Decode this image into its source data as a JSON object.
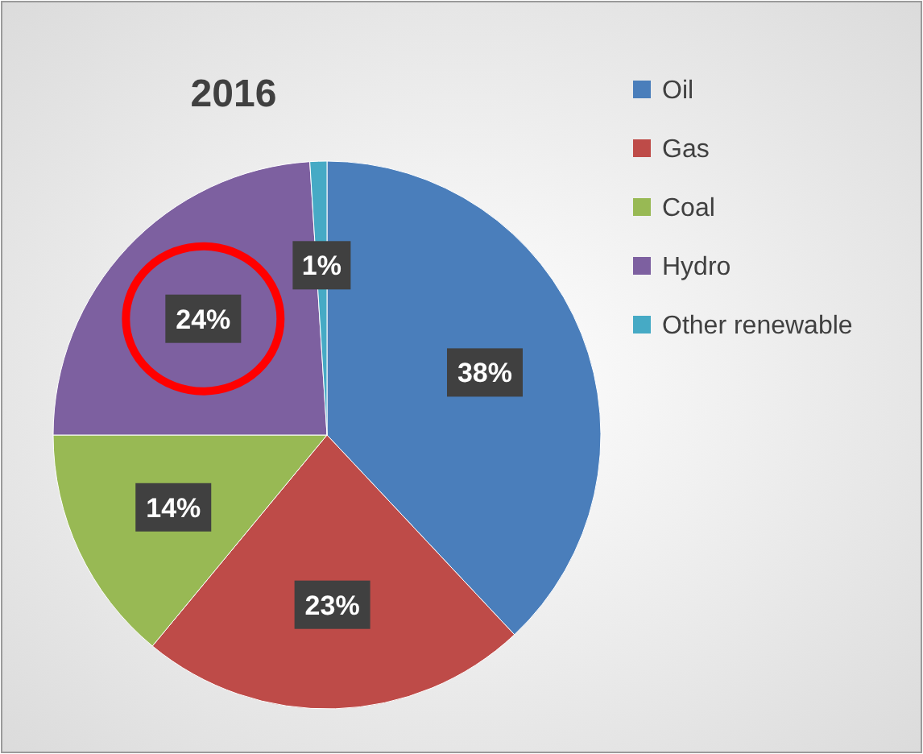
{
  "chart_data": {
    "type": "pie",
    "title": "2016",
    "categories": [
      "Oil",
      "Gas",
      "Coal",
      "Hydro",
      "Other renewable"
    ],
    "values": [
      38,
      23,
      14,
      24,
      1
    ],
    "colors": [
      "#4a7ebb",
      "#be4b48",
      "#98b954",
      "#7d60a0",
      "#46aac5"
    ],
    "value_labels": [
      "38%",
      "23%",
      "14%",
      "24%",
      "1%"
    ],
    "legend": "right"
  }
}
